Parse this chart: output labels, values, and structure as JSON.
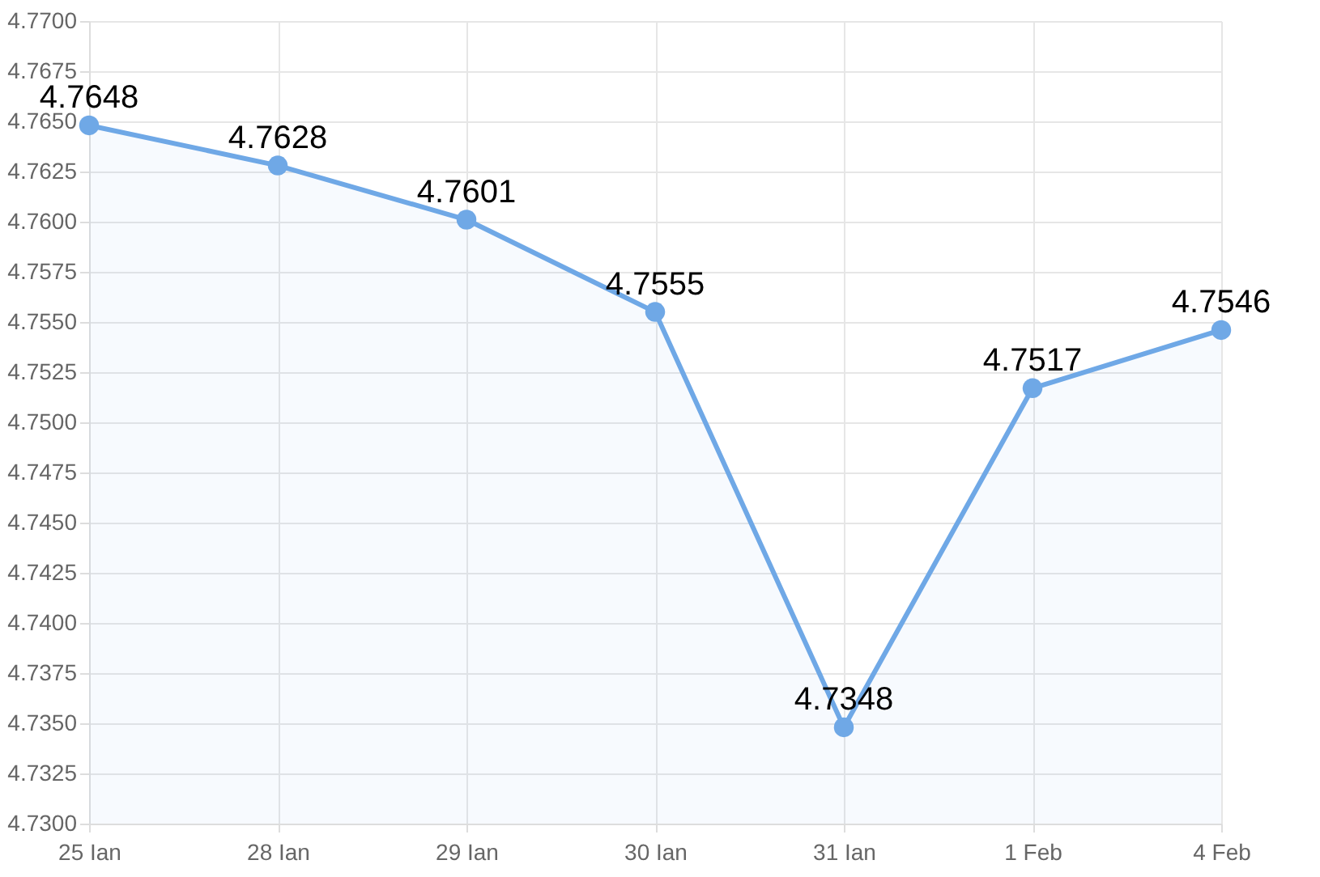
{
  "chart_data": {
    "type": "area",
    "categories": [
      "25 Ian",
      "28 Ian",
      "29 Ian",
      "30 Ian",
      "31 Ian",
      "1 Feb",
      "4 Feb"
    ],
    "series": [
      {
        "color": "#6fa8e6",
        "values": [
          4.7648,
          4.7628,
          4.7601,
          4.7555,
          4.7348,
          4.7517,
          4.7546
        ]
      }
    ],
    "ylim": [
      4.73,
      4.77
    ],
    "yticks": [
      {
        "value": 4.73,
        "label": "4.7300"
      },
      4.7325,
      {
        "value": 4.735,
        "label": "4.7350"
      },
      4.7375,
      {
        "value": 4.74,
        "label": "4.7400"
      },
      4.7425,
      {
        "value": 4.745,
        "label": "4.7450"
      },
      4.7475,
      {
        "value": 4.75,
        "label": "4.7500"
      },
      4.7525,
      {
        "value": 4.755,
        "label": "4.7550"
      },
      4.7575,
      {
        "value": 4.76,
        "label": "4.7600"
      },
      4.7625,
      {
        "value": 4.765,
        "label": "4.7650"
      },
      4.7675,
      {
        "value": 4.77,
        "label": "4.7700"
      }
    ],
    "grid": true,
    "marker": "circle",
    "data_labels": true
  }
}
